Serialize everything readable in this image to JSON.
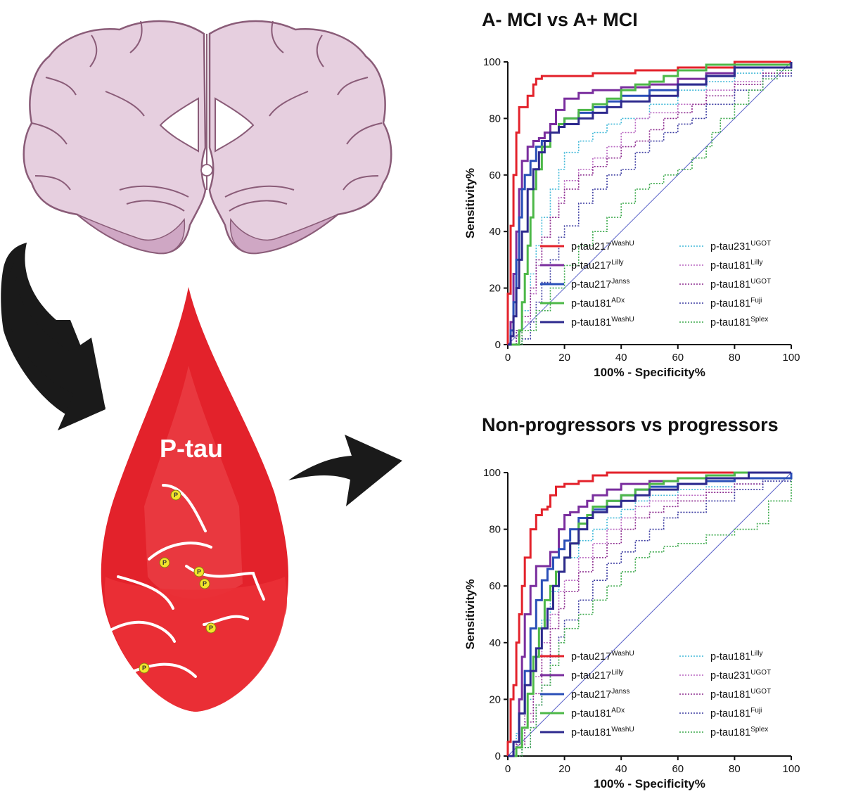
{
  "illustration": {
    "drop_label": "P-tau",
    "phospho_letter": "P",
    "icons": [
      "brain-coronal-icon",
      "curved-arrow-icon",
      "blood-drop-icon",
      "right-arrow-icon"
    ],
    "colors": {
      "brain": "#e6cfdf",
      "brain_outline": "#8a5c78",
      "drop": "#e3222b",
      "drop_light": "#ef4a50",
      "arrow": "#1a1a1a",
      "phospho": "#f2e52b"
    }
  },
  "chart_data": [
    {
      "type": "line",
      "title": "A- MCI vs A+ MCI",
      "xlabel": "100% - Specificity%",
      "ylabel": "Sensitivity%",
      "xlim": [
        0,
        100
      ],
      "ylim": [
        0,
        100
      ],
      "xticks": [
        "0",
        "20",
        "40",
        "60",
        "80",
        "100"
      ],
      "yticks": [
        "0",
        "20",
        "40",
        "60",
        "80",
        "100"
      ],
      "grid": false,
      "legend_position": "bottom-right",
      "reference_line": {
        "x": [
          0,
          100
        ],
        "y": [
          0,
          100
        ],
        "color": "#5b63c9"
      },
      "series": [
        {
          "name": "p-tau217",
          "sup": "WashU",
          "color": "#e3222b",
          "style": "solid",
          "x": [
            0,
            0,
            1,
            1,
            2,
            3,
            4,
            5,
            7,
            9,
            10,
            12,
            15,
            20,
            30,
            45,
            60,
            80,
            100
          ],
          "y": [
            0,
            18,
            30,
            42,
            60,
            75,
            84,
            84,
            88,
            92,
            94,
            95,
            95,
            95,
            96,
            97,
            98,
            100,
            100
          ]
        },
        {
          "name": "p-tau217",
          "sup": "Lilly",
          "color": "#7a2e9e",
          "style": "solid",
          "x": [
            0,
            1,
            2,
            3,
            4,
            5,
            7,
            9,
            11,
            13,
            15,
            17,
            20,
            25,
            30,
            40,
            50,
            60,
            70,
            80,
            100
          ],
          "y": [
            0,
            8,
            25,
            40,
            55,
            65,
            70,
            72,
            73,
            75,
            78,
            83,
            87,
            89,
            90,
            91,
            92,
            94,
            96,
            99,
            100
          ]
        },
        {
          "name": "p-tau217",
          "sup": "Janss",
          "color": "#2a4fb8",
          "style": "solid",
          "x": [
            0,
            1,
            2,
            3,
            4,
            5,
            6,
            8,
            10,
            12,
            15,
            18,
            20,
            25,
            30,
            35,
            40,
            50,
            60,
            70,
            80,
            100
          ],
          "y": [
            0,
            5,
            15,
            30,
            45,
            55,
            60,
            65,
            70,
            72,
            75,
            77,
            80,
            82,
            84,
            86,
            88,
            90,
            92,
            95,
            98,
            100
          ]
        },
        {
          "name": "p-tau181",
          "sup": "ADx",
          "color": "#4db848",
          "style": "solid",
          "x": [
            0,
            3,
            4,
            5,
            6,
            7,
            8,
            9,
            10,
            12,
            15,
            18,
            20,
            25,
            30,
            35,
            40,
            45,
            50,
            55,
            60,
            70,
            100
          ],
          "y": [
            0,
            0,
            5,
            15,
            25,
            35,
            45,
            55,
            62,
            70,
            75,
            78,
            80,
            83,
            85,
            87,
            90,
            92,
            93,
            95,
            97,
            99,
            100
          ]
        },
        {
          "name": "p-tau181",
          "sup": "WashU",
          "color": "#2e2a8e",
          "style": "solid",
          "x": [
            0,
            1,
            2,
            3,
            4,
            5,
            7,
            9,
            11,
            13,
            15,
            18,
            20,
            25,
            30,
            35,
            40,
            50,
            60,
            70,
            80,
            100
          ],
          "y": [
            0,
            3,
            10,
            20,
            30,
            40,
            55,
            62,
            68,
            72,
            75,
            77,
            78,
            80,
            82,
            84,
            86,
            88,
            92,
            95,
            98,
            100
          ]
        },
        {
          "name": "p-tau231",
          "sup": "UGOT",
          "color": "#40b8d8",
          "style": "dotted",
          "x": [
            0,
            3,
            5,
            8,
            10,
            12,
            15,
            18,
            20,
            25,
            30,
            35,
            40,
            50,
            60,
            70,
            80,
            90,
            100
          ],
          "y": [
            0,
            5,
            12,
            25,
            35,
            45,
            55,
            62,
            68,
            72,
            75,
            78,
            80,
            85,
            90,
            93,
            96,
            98,
            100
          ]
        },
        {
          "name": "p-tau181",
          "sup": "Lilly",
          "color": "#b865c0",
          "style": "dotted",
          "x": [
            0,
            3,
            5,
            8,
            10,
            12,
            15,
            18,
            20,
            25,
            30,
            35,
            40,
            45,
            50,
            60,
            70,
            80,
            90,
            100
          ],
          "y": [
            0,
            3,
            8,
            18,
            28,
            38,
            45,
            52,
            58,
            62,
            66,
            70,
            75,
            80,
            82,
            85,
            90,
            93,
            96,
            100
          ]
        },
        {
          "name": "p-tau181",
          "sup": "UGOT",
          "color": "#8b2a8e",
          "style": "dotted",
          "x": [
            0,
            3,
            5,
            8,
            10,
            12,
            15,
            18,
            20,
            25,
            30,
            35,
            40,
            45,
            50,
            55,
            60,
            65,
            70,
            80,
            90,
            100
          ],
          "y": [
            0,
            5,
            10,
            20,
            30,
            38,
            45,
            50,
            55,
            60,
            63,
            66,
            70,
            72,
            76,
            80,
            82,
            85,
            88,
            92,
            96,
            100
          ]
        },
        {
          "name": "p-tau181",
          "sup": "Fuji",
          "color": "#3a3aa0",
          "style": "dotted",
          "x": [
            0,
            5,
            8,
            10,
            12,
            15,
            18,
            20,
            25,
            30,
            35,
            40,
            45,
            50,
            55,
            60,
            65,
            70,
            80,
            90,
            100
          ],
          "y": [
            0,
            2,
            8,
            15,
            22,
            30,
            38,
            42,
            50,
            55,
            60,
            62,
            68,
            72,
            75,
            78,
            80,
            85,
            90,
            95,
            100
          ]
        },
        {
          "name": "p-tau181",
          "sup": "Splex",
          "color": "#3aa84a",
          "style": "dotted",
          "x": [
            0,
            5,
            10,
            15,
            20,
            25,
            30,
            35,
            40,
            45,
            50,
            55,
            60,
            65,
            70,
            72,
            75,
            80,
            85,
            90,
            95,
            100
          ],
          "y": [
            0,
            5,
            12,
            20,
            28,
            35,
            40,
            45,
            50,
            55,
            57,
            60,
            62,
            66,
            70,
            75,
            80,
            85,
            90,
            94,
            97,
            100
          ]
        }
      ]
    },
    {
      "type": "line",
      "title": "Non-progressors vs progressors",
      "xlabel": "100% - Specificity%",
      "ylabel": "Sensitivity%",
      "xlim": [
        0,
        100
      ],
      "ylim": [
        0,
        100
      ],
      "xticks": [
        "0",
        "20",
        "40",
        "60",
        "80",
        "100"
      ],
      "yticks": [
        "0",
        "20",
        "40",
        "60",
        "80",
        "100"
      ],
      "grid": false,
      "legend_position": "bottom-right",
      "reference_line": {
        "x": [
          0,
          100
        ],
        "y": [
          0,
          100
        ],
        "color": "#5b63c9"
      },
      "series": [
        {
          "name": "p-tau217",
          "sup": "WashU",
          "color": "#e3222b",
          "style": "solid",
          "x": [
            0,
            0,
            1,
            2,
            3,
            4,
            5,
            6,
            8,
            10,
            12,
            14,
            15,
            17,
            20,
            25,
            30,
            35,
            50,
            100
          ],
          "y": [
            0,
            5,
            20,
            25,
            40,
            50,
            60,
            70,
            80,
            85,
            87,
            88,
            92,
            95,
            96,
            97,
            99,
            100,
            100,
            100
          ]
        },
        {
          "name": "p-tau217",
          "sup": "Lilly",
          "color": "#7a2e9e",
          "style": "solid",
          "x": [
            0,
            2,
            4,
            5,
            6,
            8,
            10,
            12,
            15,
            18,
            20,
            22,
            25,
            28,
            30,
            35,
            40,
            50,
            60,
            70,
            80,
            100
          ],
          "y": [
            0,
            5,
            20,
            35,
            50,
            60,
            67,
            67,
            72,
            80,
            85,
            86,
            88,
            90,
            92,
            94,
            96,
            97,
            98,
            99,
            100,
            100
          ]
        },
        {
          "name": "p-tau217",
          "sup": "Janss",
          "color": "#2a4fb8",
          "style": "solid",
          "x": [
            0,
            2,
            4,
            6,
            8,
            10,
            12,
            14,
            16,
            18,
            20,
            22,
            25,
            30,
            35,
            40,
            45,
            50,
            60,
            70,
            80,
            100
          ],
          "y": [
            0,
            5,
            15,
            30,
            45,
            55,
            62,
            66,
            70,
            73,
            76,
            80,
            84,
            87,
            90,
            92,
            94,
            95,
            96,
            97,
            98,
            100
          ]
        },
        {
          "name": "p-tau181",
          "sup": "ADx",
          "color": "#4db848",
          "style": "solid",
          "x": [
            0,
            3,
            5,
            7,
            9,
            11,
            13,
            15,
            17,
            20,
            22,
            25,
            28,
            30,
            35,
            40,
            45,
            50,
            55,
            60,
            70,
            80,
            100
          ],
          "y": [
            0,
            3,
            10,
            22,
            35,
            45,
            55,
            60,
            65,
            70,
            75,
            82,
            85,
            88,
            90,
            92,
            94,
            96,
            97,
            98,
            99,
            100,
            100
          ]
        },
        {
          "name": "p-tau181",
          "sup": "WashU",
          "color": "#2e2a8e",
          "style": "solid",
          "x": [
            0,
            2,
            4,
            6,
            8,
            10,
            12,
            14,
            16,
            18,
            20,
            22,
            25,
            28,
            30,
            35,
            40,
            45,
            50,
            60,
            70,
            85,
            100
          ],
          "y": [
            0,
            5,
            15,
            25,
            30,
            38,
            45,
            52,
            60,
            65,
            70,
            75,
            80,
            84,
            86,
            88,
            90,
            92,
            94,
            96,
            98,
            100,
            100
          ]
        },
        {
          "name": "p-tau181",
          "sup": "Lilly",
          "color": "#40b8d8",
          "style": "dotted",
          "x": [
            0,
            3,
            6,
            9,
            12,
            15,
            18,
            20,
            25,
            30,
            35,
            40,
            45,
            50,
            60,
            70,
            80,
            90,
            100
          ],
          "y": [
            0,
            8,
            20,
            35,
            48,
            58,
            65,
            70,
            76,
            80,
            84,
            87,
            90,
            92,
            94,
            95,
            96,
            98,
            100
          ]
        },
        {
          "name": "p-tau231",
          "sup": "UGOT",
          "color": "#b865c0",
          "style": "dotted",
          "x": [
            0,
            3,
            6,
            9,
            12,
            15,
            18,
            20,
            25,
            30,
            35,
            40,
            45,
            50,
            60,
            70,
            80,
            90,
            100
          ],
          "y": [
            0,
            5,
            15,
            28,
            40,
            50,
            58,
            62,
            70,
            75,
            80,
            84,
            88,
            90,
            92,
            94,
            96,
            98,
            100
          ]
        },
        {
          "name": "p-tau181",
          "sup": "UGOT",
          "color": "#8b2a8e",
          "style": "dotted",
          "x": [
            0,
            3,
            6,
            9,
            12,
            15,
            18,
            20,
            25,
            30,
            35,
            40,
            45,
            50,
            55,
            60,
            70,
            80,
            90,
            100
          ],
          "y": [
            0,
            4,
            12,
            22,
            35,
            45,
            52,
            58,
            65,
            70,
            75,
            80,
            84,
            86,
            88,
            90,
            93,
            96,
            98,
            100
          ]
        },
        {
          "name": "p-tau181",
          "sup": "Fuji",
          "color": "#3a3aa0",
          "style": "dotted",
          "x": [
            0,
            5,
            8,
            10,
            12,
            15,
            18,
            20,
            25,
            30,
            35,
            40,
            45,
            50,
            55,
            60,
            70,
            80,
            90,
            100
          ],
          "y": [
            0,
            3,
            10,
            18,
            25,
            35,
            42,
            48,
            55,
            62,
            68,
            72,
            76,
            80,
            84,
            86,
            90,
            94,
            97,
            100
          ]
        },
        {
          "name": "p-tau181",
          "sup": "Splex",
          "color": "#3aa84a",
          "style": "dotted",
          "x": [
            0,
            5,
            8,
            10,
            12,
            15,
            18,
            20,
            25,
            30,
            35,
            40,
            45,
            50,
            55,
            60,
            70,
            80,
            88,
            92,
            100
          ],
          "y": [
            0,
            3,
            10,
            18,
            25,
            32,
            40,
            45,
            50,
            55,
            60,
            65,
            70,
            72,
            74,
            75,
            78,
            80,
            82,
            90,
            100
          ]
        }
      ]
    }
  ]
}
